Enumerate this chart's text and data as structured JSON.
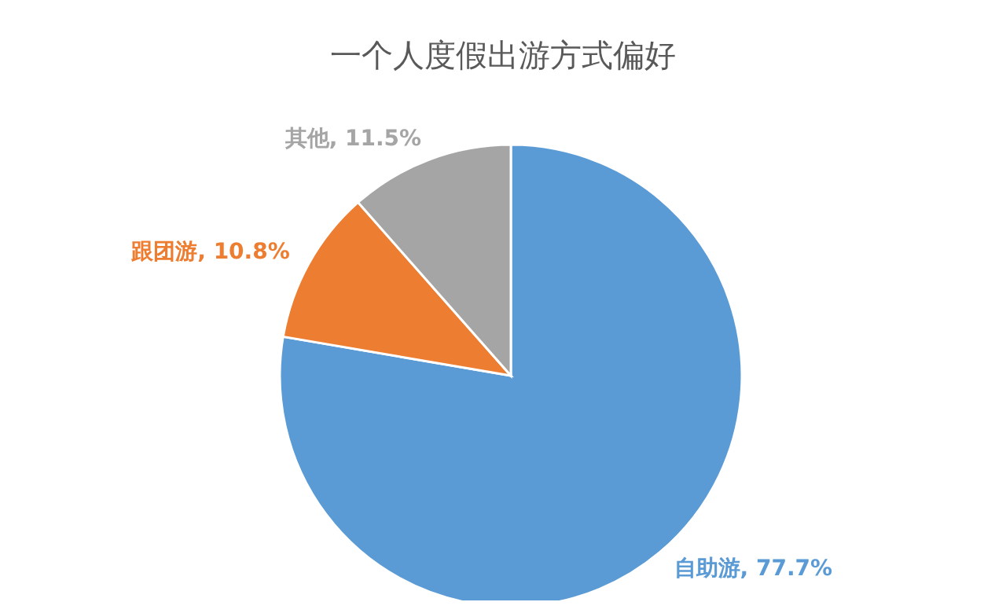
{
  "chart_data": {
    "type": "pie",
    "title": "一个人度假出游方式偏好",
    "categories": [
      "自助游",
      "跟团游",
      "其他"
    ],
    "values": [
      77.7,
      10.8,
      11.5
    ],
    "value_labels": [
      "77.7%",
      "10.8%",
      "11.5%"
    ],
    "colors": [
      "#5b9bd5",
      "#ed7d31",
      "#a5a5a5"
    ],
    "legend": false
  }
}
